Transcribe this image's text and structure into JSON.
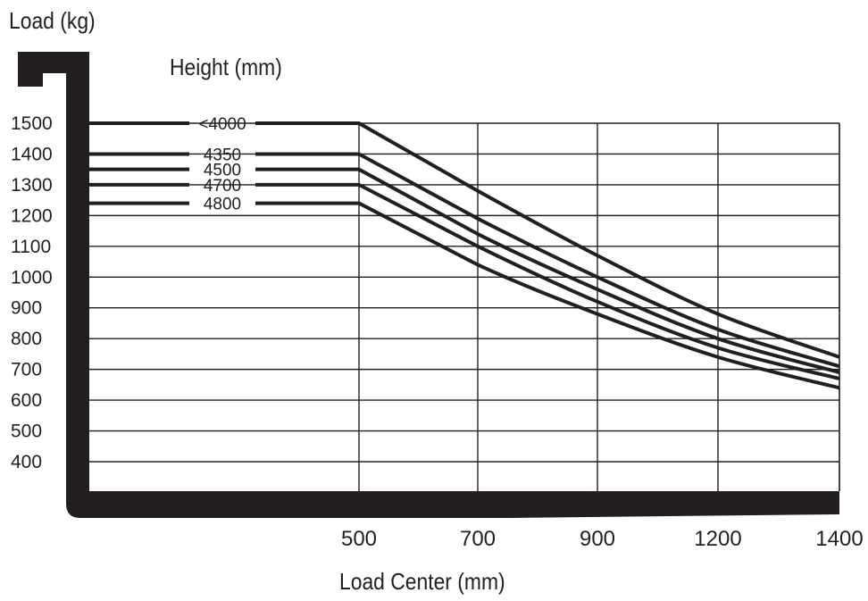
{
  "chart_data": {
    "type": "line",
    "ylabel": "Load (kg)",
    "xlabel": "Load Center (mm)",
    "legend_title": "Height (mm)",
    "y_ticks": [
      1500,
      1400,
      1300,
      1200,
      1100,
      1000,
      900,
      800,
      700,
      600,
      500,
      400
    ],
    "x_ticks": [
      500,
      700,
      900,
      1200,
      1400
    ],
    "ylim": [
      300,
      1560
    ],
    "grid": true,
    "series": [
      {
        "name": "<4000",
        "points": [
          [
            0,
            1500
          ],
          [
            500,
            1500
          ],
          [
            700,
            1280
          ],
          [
            900,
            1070
          ],
          [
            1200,
            880
          ],
          [
            1400,
            740
          ]
        ]
      },
      {
        "name": "4350",
        "points": [
          [
            0,
            1400
          ],
          [
            500,
            1400
          ],
          [
            700,
            1190
          ],
          [
            900,
            1000
          ],
          [
            1200,
            830
          ],
          [
            1400,
            710
          ]
        ]
      },
      {
        "name": "4500",
        "points": [
          [
            0,
            1350
          ],
          [
            500,
            1350
          ],
          [
            700,
            1140
          ],
          [
            900,
            960
          ],
          [
            1200,
            800
          ],
          [
            1400,
            690
          ]
        ]
      },
      {
        "name": "4700",
        "points": [
          [
            0,
            1300
          ],
          [
            500,
            1300
          ],
          [
            700,
            1100
          ],
          [
            900,
            920
          ],
          [
            1200,
            770
          ],
          [
            1400,
            670
          ]
        ]
      },
      {
        "name": "4800",
        "points": [
          [
            0,
            1240
          ],
          [
            500,
            1240
          ],
          [
            700,
            1040
          ],
          [
            900,
            880
          ],
          [
            1200,
            740
          ],
          [
            1400,
            640
          ]
        ]
      }
    ]
  }
}
